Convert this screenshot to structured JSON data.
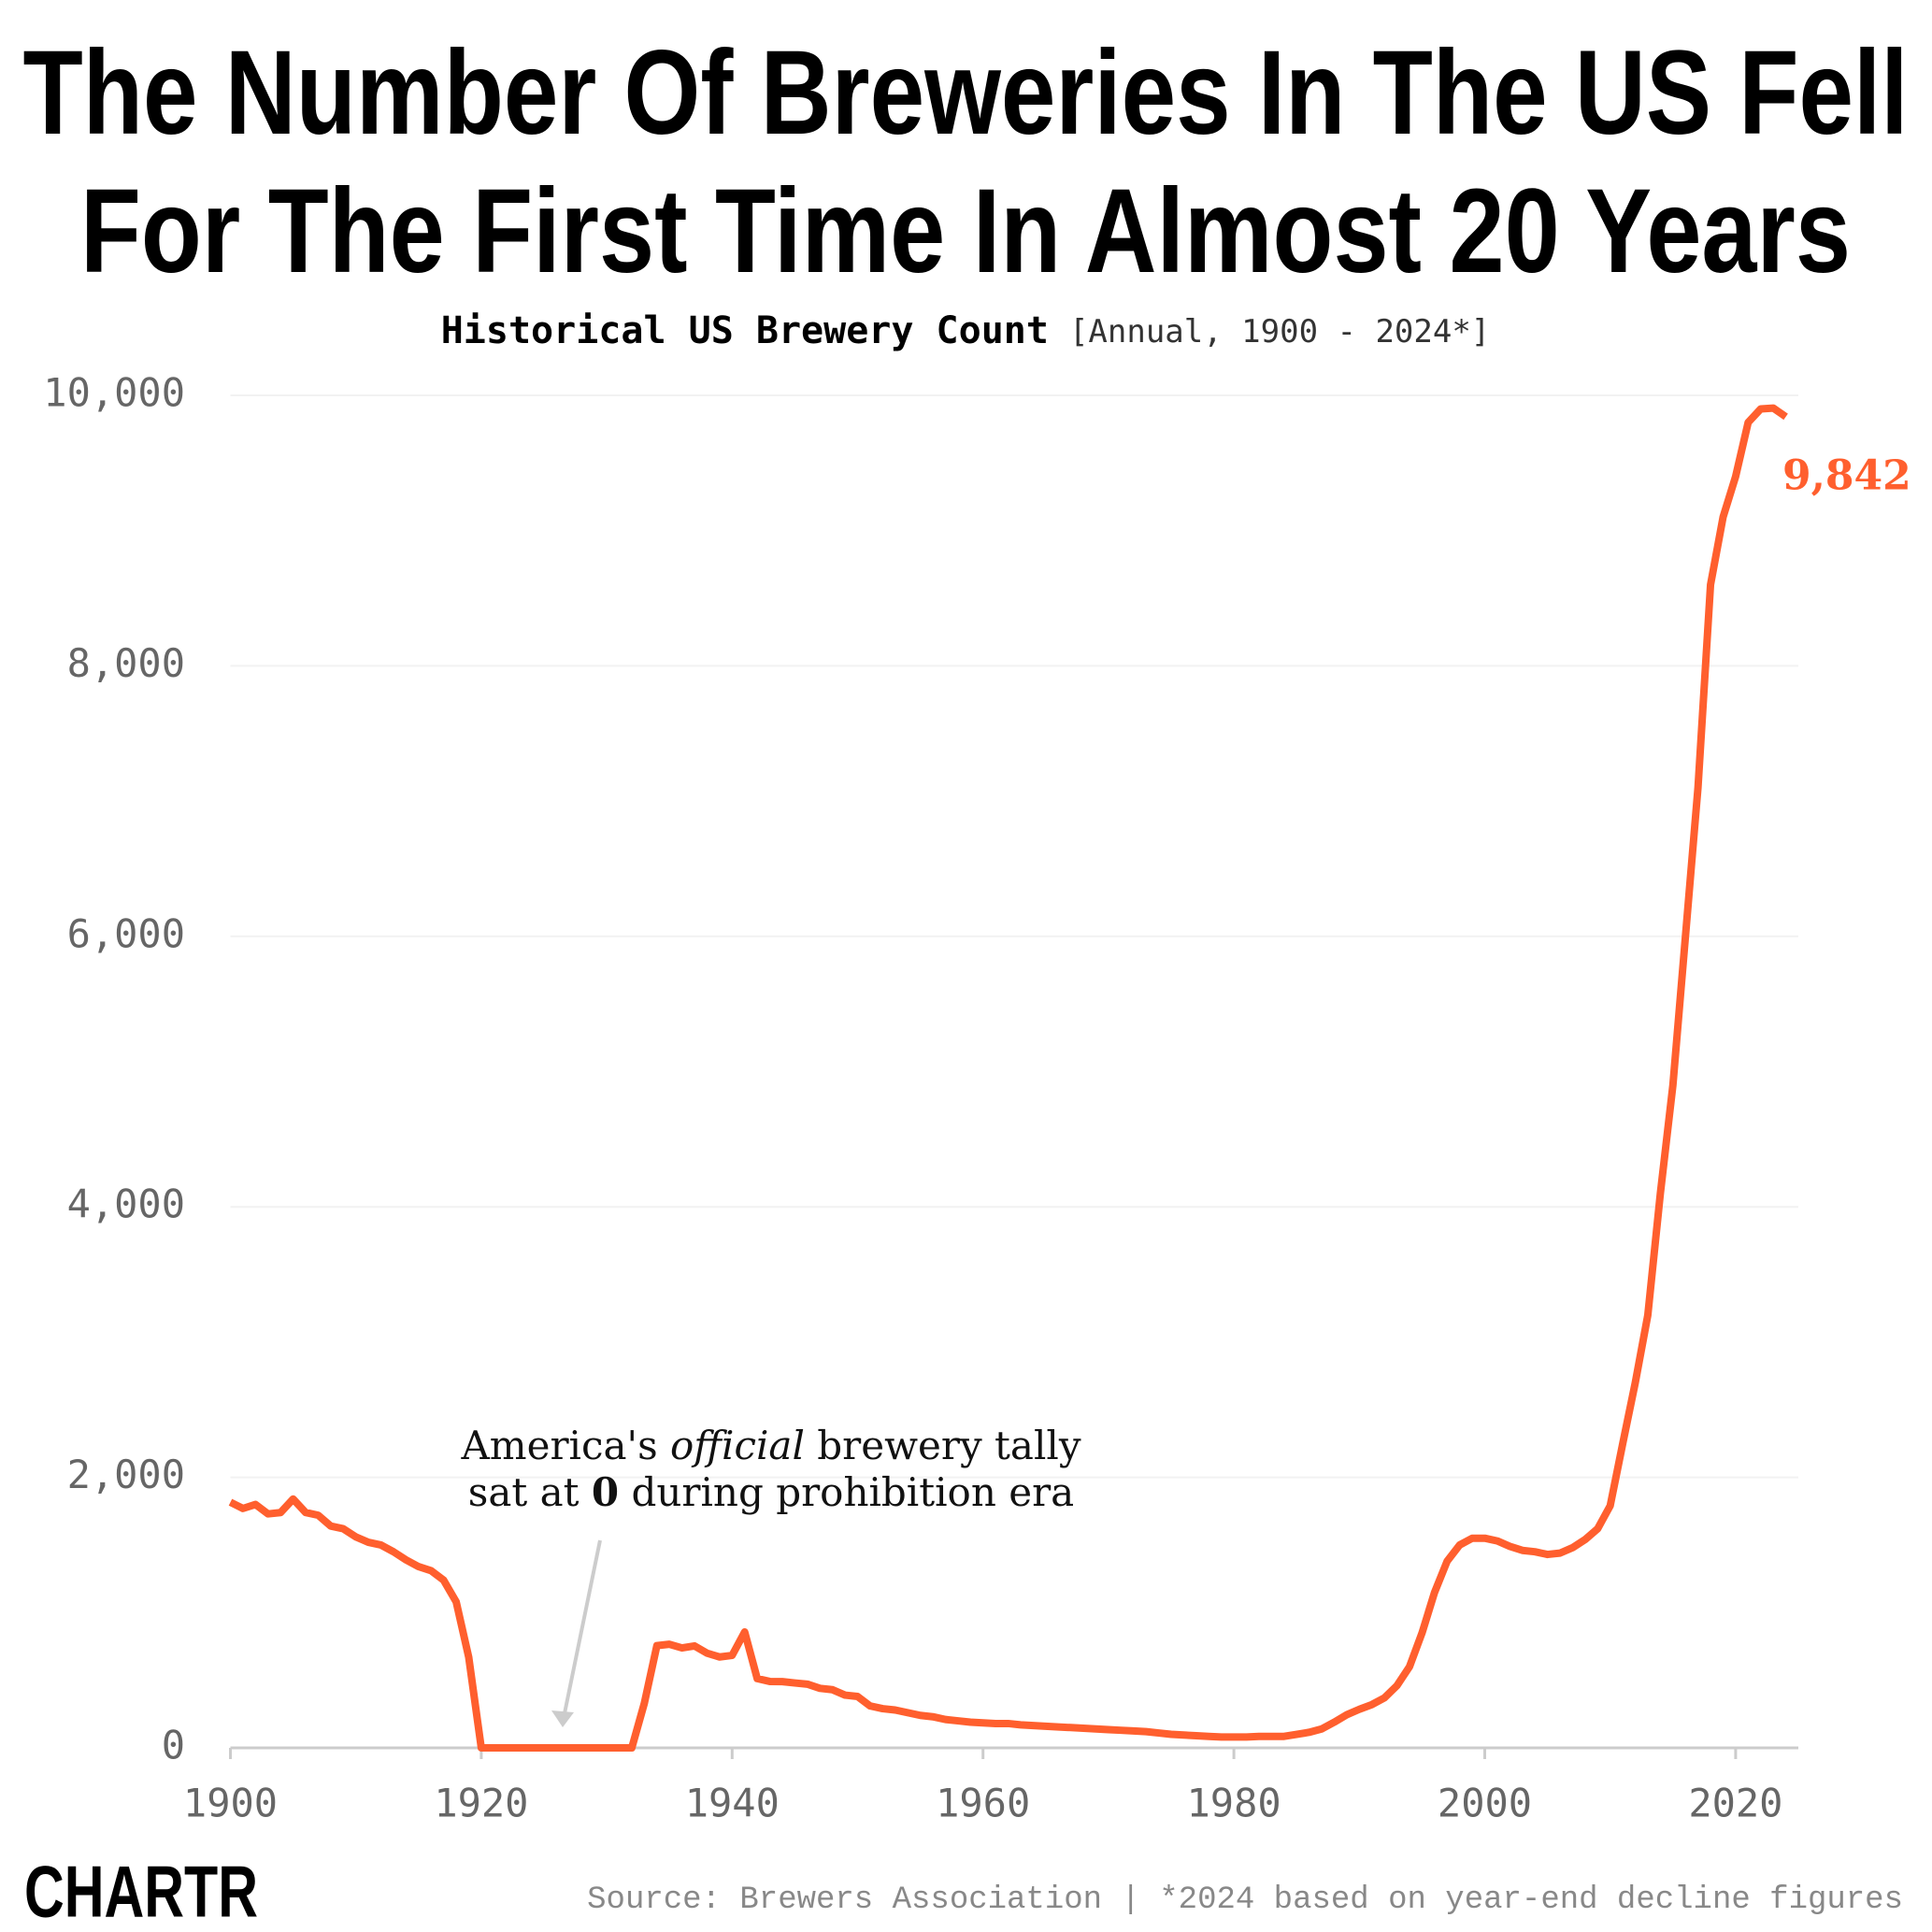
{
  "chart_data": {
    "type": "line",
    "title": [
      "The Number Of Breweries In The US Fell",
      "For The First Time In Almost 20 Years"
    ],
    "subtitle": {
      "main": "Historical US Brewery Count",
      "note": "[Annual, 1900 - 2024*]"
    },
    "x": [
      1900,
      1901,
      1902,
      1903,
      1904,
      1905,
      1906,
      1907,
      1908,
      1909,
      1910,
      1911,
      1912,
      1913,
      1914,
      1915,
      1916,
      1917,
      1918,
      1919,
      1920,
      1921,
      1922,
      1923,
      1924,
      1925,
      1926,
      1927,
      1928,
      1929,
      1930,
      1931,
      1932,
      1933,
      1934,
      1935,
      1936,
      1937,
      1938,
      1939,
      1940,
      1941,
      1942,
      1943,
      1944,
      1945,
      1946,
      1947,
      1948,
      1949,
      1950,
      1951,
      1952,
      1953,
      1954,
      1955,
      1956,
      1957,
      1958,
      1959,
      1960,
      1961,
      1962,
      1963,
      1964,
      1965,
      1966,
      1967,
      1968,
      1969,
      1970,
      1971,
      1972,
      1973,
      1974,
      1975,
      1976,
      1977,
      1978,
      1979,
      1980,
      1981,
      1982,
      1983,
      1984,
      1985,
      1986,
      1987,
      1988,
      1989,
      1990,
      1991,
      1992,
      1993,
      1994,
      1995,
      1996,
      1997,
      1998,
      1999,
      2000,
      2001,
      2002,
      2003,
      2004,
      2005,
      2006,
      2007,
      2008,
      2009,
      2010,
      2011,
      2012,
      2013,
      2014,
      2015,
      2016,
      2017,
      2018,
      2019,
      2020,
      2021,
      2022,
      2023,
      2024
    ],
    "series": [
      {
        "name": "US breweries",
        "color": "#ff5f2e",
        "values": [
          1816,
          1770,
          1800,
          1730,
          1740,
          1840,
          1740,
          1720,
          1640,
          1620,
          1560,
          1520,
          1500,
          1450,
          1390,
          1340,
          1310,
          1240,
          1080,
          670,
          0,
          0,
          0,
          0,
          0,
          0,
          0,
          0,
          0,
          0,
          0,
          0,
          0,
          330,
          756,
          766,
          739,
          754,
          700,
          672,
          684,
          857,
          512,
          491,
          490,
          480,
          471,
          440,
          430,
          390,
          380,
          310,
          290,
          280,
          260,
          240,
          230,
          210,
          200,
          190,
          185,
          180,
          180,
          170,
          165,
          160,
          155,
          150,
          145,
          140,
          135,
          130,
          125,
          120,
          110,
          100,
          95,
          90,
          85,
          80,
          80,
          80,
          85,
          85,
          85,
          100,
          115,
          140,
          190,
          245,
          285,
          320,
          370,
          460,
          600,
          850,
          1150,
          1380,
          1500,
          1550,
          1550,
          1530,
          1490,
          1460,
          1450,
          1430,
          1440,
          1480,
          1540,
          1620,
          1790,
          2250,
          2700,
          3200,
          4100,
          4900,
          6000,
          7100,
          8600,
          9100,
          9400,
          9800,
          9900,
          9906,
          9842
        ]
      }
    ],
    "end_label": "9,842",
    "xlim": [
      1900,
      2025
    ],
    "xticks": [
      1900,
      1920,
      1940,
      1960,
      1980,
      2000,
      2020
    ],
    "ylim": [
      0,
      10000
    ],
    "yticks": [
      0,
      {
        "value": 2000,
        "label": "2,000"
      },
      {
        "value": 4000,
        "label": "4,000"
      },
      {
        "value": 6000,
        "label": "6,000"
      },
      {
        "value": 8000,
        "label": "8,000"
      },
      {
        "value": 10000,
        "label": "10,000"
      }
    ],
    "grid": true,
    "annotation": {
      "lines": [
        [
          "America's ",
          "official",
          " brewery tally"
        ],
        [
          "sat at ",
          "0",
          " during prohibition era"
        ]
      ]
    },
    "source": "Source: Brewers Association | *2024 based on year-end decline figures",
    "logo": "CHARTR"
  }
}
